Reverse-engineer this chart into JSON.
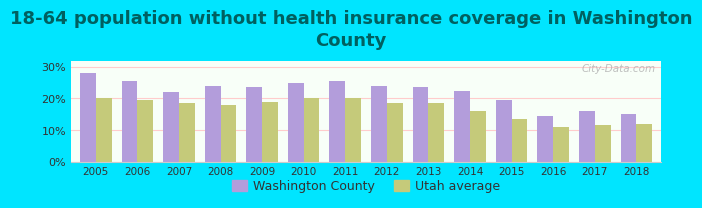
{
  "title": "18-64 population without health insurance coverage in Washington\nCounty",
  "years": [
    2005,
    2006,
    2007,
    2008,
    2009,
    2010,
    2011,
    2012,
    2013,
    2014,
    2015,
    2016,
    2017,
    2018
  ],
  "washington_county": [
    28.0,
    25.5,
    22.0,
    24.0,
    23.5,
    25.0,
    25.5,
    24.0,
    23.5,
    22.5,
    19.5,
    14.5,
    16.0,
    15.0
  ],
  "utah_average": [
    20.0,
    19.5,
    18.5,
    18.0,
    19.0,
    20.0,
    20.0,
    18.5,
    18.5,
    16.0,
    13.5,
    11.0,
    11.5,
    12.0
  ],
  "bar_color_wc": "#b39ddb",
  "bar_color_ut": "#c5ca7a",
  "background_outer": "#00e5ff",
  "background_inner": "#f0fff0",
  "title_color": "#006060",
  "ylabel": "",
  "ylim": [
    0,
    32
  ],
  "yticks": [
    0,
    10,
    20,
    30
  ],
  "ytick_labels": [
    "0%",
    "10%",
    "20%",
    "30%"
  ],
  "legend_wc": "Washington County",
  "legend_ut": "Utah average",
  "title_fontsize": 13,
  "watermark": "City-Data.com"
}
